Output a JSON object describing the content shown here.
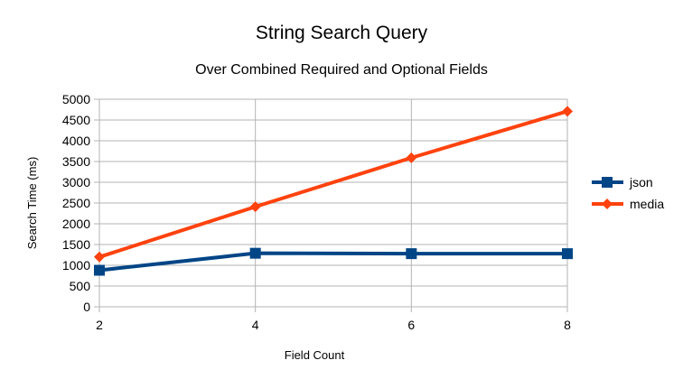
{
  "chart_data": {
    "type": "line",
    "title": "String Search Query",
    "subtitle": "Over Combined Required and Optional Fields",
    "xlabel": "Field Count",
    "ylabel": "Search Time (ms)",
    "x": [
      2,
      4,
      6,
      8
    ],
    "xlim": [
      2,
      8
    ],
    "ylim": [
      0,
      5000
    ],
    "yticks": [
      0,
      500,
      1000,
      1500,
      2000,
      2500,
      3000,
      3500,
      4000,
      4500,
      5000
    ],
    "grid": "horizontal",
    "legend_position": "right",
    "series": [
      {
        "name": "json",
        "color": "#004586",
        "marker": "square",
        "values": [
          880,
          1290,
          1280,
          1280
        ]
      },
      {
        "name": "media",
        "color": "#ff420e",
        "marker": "diamond",
        "values": [
          1200,
          2410,
          3590,
          4710
        ]
      }
    ]
  }
}
